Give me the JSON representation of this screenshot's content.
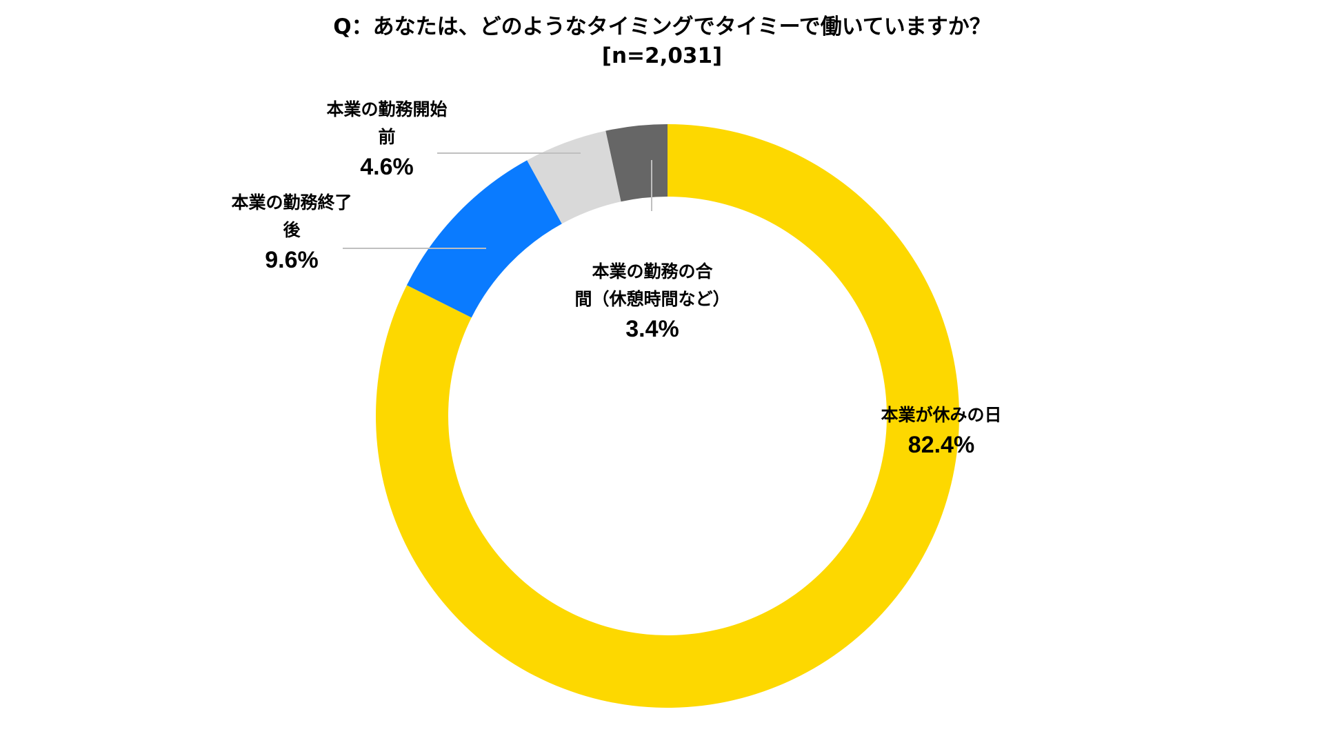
{
  "chart_data": {
    "type": "pie",
    "donut": true,
    "title": "Q：あなたは、どのようなタイミングでタイミーで働いていますか？",
    "subtitle": "[n=2,031]",
    "slices": [
      {
        "label_lines": [
          "本業が休みの日"
        ],
        "value_text": "82.4%",
        "value": 82.4,
        "color": "#FDD800"
      },
      {
        "label_lines": [
          "本業の勤務終了",
          "後"
        ],
        "value_text": "9.6%",
        "value": 9.6,
        "color": "#0A7BFF"
      },
      {
        "label_lines": [
          "本業の勤務開始",
          "前"
        ],
        "value_text": "4.6%",
        "value": 4.6,
        "color": "#D9D9D9"
      },
      {
        "label_lines": [
          "本業の勤務の合",
          "間（休憩時間など）"
        ],
        "value_text": "3.4%",
        "value": 3.4,
        "color": "#666666"
      }
    ],
    "start_position": "top",
    "direction": "clockwise",
    "legend": "none",
    "leader_line_color": "#BFBFBF"
  }
}
